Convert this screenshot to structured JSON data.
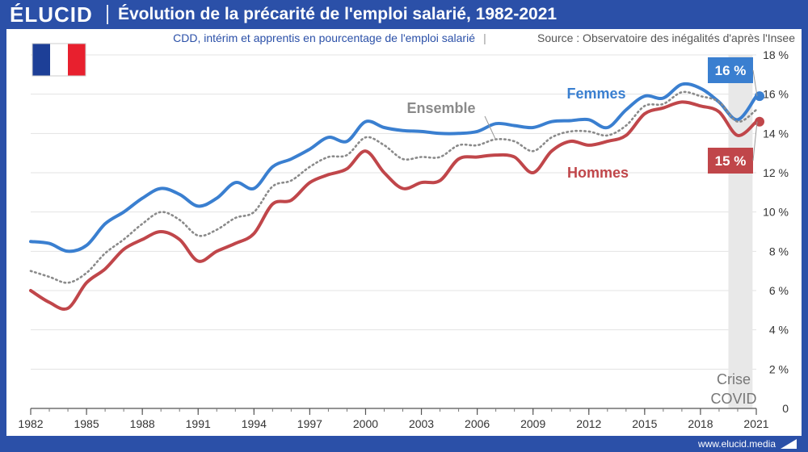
{
  "header": {
    "brand": "ÉLUCID",
    "title": "Évolution de la précarité de l'emploi salarié, 1982-2021"
  },
  "subtitle": {
    "description": "CDD, intérim et apprentis en pourcentage de l'emploi salarié",
    "separator": "|",
    "source": "Source : Observatoire des inégalités d'après l'Insee"
  },
  "footer": {
    "url": "www.elucid.media"
  },
  "colors": {
    "femmes": "#3a7fd0",
    "hommes": "#c0464a",
    "ensemble": "#8a8a8a",
    "brand": "#2b50a8",
    "covid_band": "#e8e8e8"
  },
  "flag": {
    "colors": [
      "#1d3f97",
      "#ffffff",
      "#e8202e"
    ]
  },
  "chart_data": {
    "type": "line",
    "xlim": [
      1982,
      2021
    ],
    "ylim": [
      0,
      18
    ],
    "y_ticks": [
      0,
      2,
      4,
      6,
      8,
      10,
      12,
      14,
      16,
      18
    ],
    "y_tick_labels": [
      "0",
      "2 %",
      "4 %",
      "6 %",
      "8 %",
      "10 %",
      "12 %",
      "14 %",
      "16 %",
      "18 %"
    ],
    "x_ticks": [
      1982,
      1985,
      1988,
      1991,
      1994,
      1997,
      2000,
      2003,
      2006,
      2009,
      2012,
      2015,
      2018,
      2021
    ],
    "x_tick_labels": [
      "1982",
      "1985",
      "1988",
      "1991",
      "1994",
      "1997",
      "2000",
      "2003",
      "2006",
      "2009",
      "2012",
      "2015",
      "2018",
      "2021"
    ],
    "grid": true,
    "x": [
      1982,
      1983,
      1984,
      1985,
      1986,
      1987,
      1988,
      1989,
      1990,
      1991,
      1992,
      1993,
      1994,
      1995,
      1996,
      1997,
      1998,
      1999,
      2000,
      2001,
      2002,
      2003,
      2004,
      2005,
      2006,
      2007,
      2008,
      2009,
      2010,
      2011,
      2012,
      2013,
      2014,
      2015,
      2016,
      2017,
      2018,
      2019,
      2020,
      2021
    ],
    "series": [
      {
        "name": "Femmes",
        "style": "solid",
        "values": [
          8.5,
          8.4,
          8.0,
          8.3,
          9.4,
          10.0,
          10.7,
          11.2,
          10.9,
          10.3,
          10.7,
          11.5,
          11.2,
          12.3,
          12.7,
          13.2,
          13.8,
          13.6,
          14.6,
          14.3,
          14.15,
          14.1,
          14.0,
          14.0,
          14.1,
          14.5,
          14.4,
          14.3,
          14.6,
          14.65,
          14.7,
          14.3,
          15.2,
          15.9,
          15.8,
          16.5,
          16.3,
          15.6,
          14.7,
          15.9
        ],
        "end_label": "16 %"
      },
      {
        "name": "Ensemble",
        "style": "dotted",
        "values": [
          7.0,
          6.7,
          6.4,
          6.9,
          7.9,
          8.6,
          9.4,
          10.0,
          9.6,
          8.8,
          9.1,
          9.7,
          10.0,
          11.3,
          11.6,
          12.3,
          12.8,
          12.9,
          13.8,
          13.4,
          12.7,
          12.8,
          12.8,
          13.4,
          13.4,
          13.7,
          13.6,
          13.1,
          13.8,
          14.1,
          14.1,
          13.9,
          14.4,
          15.4,
          15.5,
          16.1,
          15.9,
          15.6,
          14.6,
          15.2
        ]
      },
      {
        "name": "Hommes",
        "style": "solid",
        "values": [
          6.0,
          5.4,
          5.1,
          6.4,
          7.1,
          8.1,
          8.6,
          9.0,
          8.6,
          7.5,
          8.0,
          8.4,
          8.9,
          10.4,
          10.6,
          11.5,
          11.9,
          12.2,
          13.1,
          12.0,
          11.2,
          11.5,
          11.6,
          12.7,
          12.8,
          12.9,
          12.8,
          12.0,
          13.1,
          13.6,
          13.4,
          13.6,
          13.9,
          15.0,
          15.3,
          15.6,
          15.4,
          15.1,
          13.9,
          14.6
        ],
        "end_label": "15 %"
      }
    ],
    "annotations": {
      "covid_band": {
        "x_start": 2019.5,
        "x_end": 2020.8,
        "text": [
          "Crise",
          "COVID"
        ]
      }
    }
  }
}
